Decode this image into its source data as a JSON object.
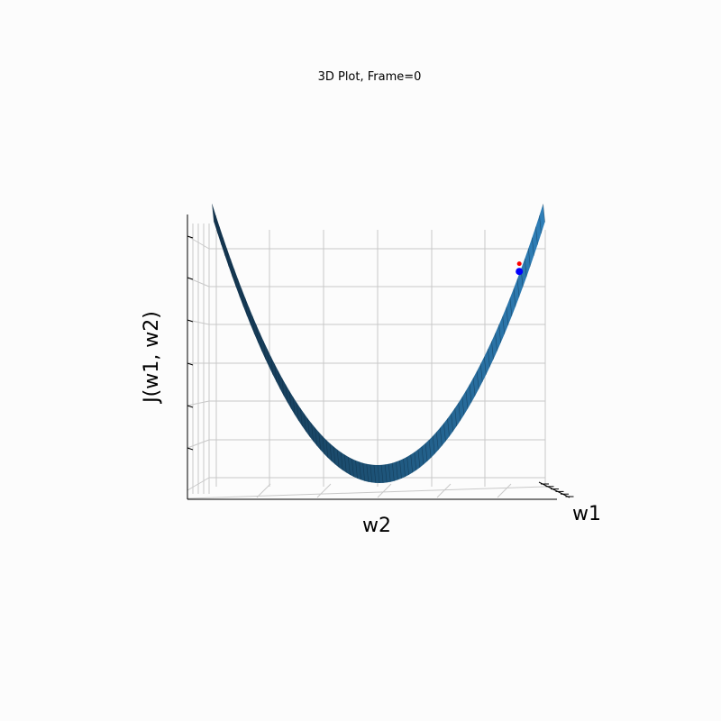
{
  "chart_data": {
    "type": "surface3d",
    "title": "3D Plot, Frame=0",
    "xlabel": "w1",
    "ylabel": "w2",
    "zlabel": "J(w1, w2)",
    "surface": "paraboloid",
    "grid": true,
    "view": "front",
    "colors": {
      "surface_light": "#2f7fb8",
      "surface_dark": "#14344d",
      "point_current": "#0000ff",
      "point_prev": "#ff0000",
      "grid": "#c8c8c8",
      "background": "#fcfcfc"
    },
    "points": [
      {
        "series": "prev",
        "w2": 4.0,
        "J": 16.6
      },
      {
        "series": "current",
        "w2": 4.0,
        "J": 16.0
      }
    ],
    "w2_range": [
      -4.5,
      4.5
    ],
    "J_range": [
      0,
      20
    ]
  }
}
